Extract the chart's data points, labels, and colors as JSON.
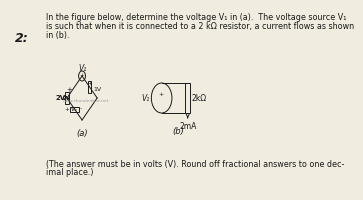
{
  "bg_color": "#f0ece0",
  "text_color": "#1a1a1a",
  "title_number": "2:",
  "line1": "In the figure below, determine the voltage V₁ in (a).  The voltage source V₁",
  "line2": "is such that when it is connected to a 2 kΩ resistor, a current flows as shown",
  "line3": "in (b).",
  "footer1": "(The answer must be in volts (V). Round off fractional answers to one dec-",
  "footer2": "imal place.)",
  "watermark": "www.thunderbizz.net",
  "label_a": "(a)",
  "label_b": "(b)"
}
